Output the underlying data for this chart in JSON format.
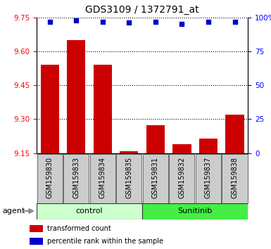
{
  "title": "GDS3109 / 1372791_at",
  "samples": [
    "GSM159830",
    "GSM159833",
    "GSM159834",
    "GSM159835",
    "GSM159831",
    "GSM159832",
    "GSM159837",
    "GSM159838"
  ],
  "bar_values": [
    9.54,
    9.65,
    9.54,
    9.157,
    9.275,
    9.19,
    9.215,
    9.32
  ],
  "percentile_values": [
    97,
    98,
    97,
    96,
    97,
    95,
    97,
    97
  ],
  "ylim_left": [
    9.15,
    9.75
  ],
  "ylim_right": [
    0,
    100
  ],
  "yticks_left": [
    9.15,
    9.3,
    9.45,
    9.6,
    9.75
  ],
  "yticks_right": [
    0,
    25,
    50,
    75,
    100
  ],
  "bar_color": "#cc0000",
  "dot_color": "#0000cc",
  "grid_color": "#000000",
  "control_label": "control",
  "sunitinib_label": "Sunitinib",
  "agent_label": "agent",
  "legend_bar": "transformed count",
  "legend_dot": "percentile rank within the sample",
  "control_bg": "#ccffcc",
  "sunitinib_bg": "#44ee44",
  "xlabel_bg": "#cccccc",
  "bar_width": 0.7,
  "title_fontsize": 10,
  "tick_fontsize": 7.5,
  "label_fontsize": 7,
  "agent_fontsize": 8,
  "group_fontsize": 8
}
